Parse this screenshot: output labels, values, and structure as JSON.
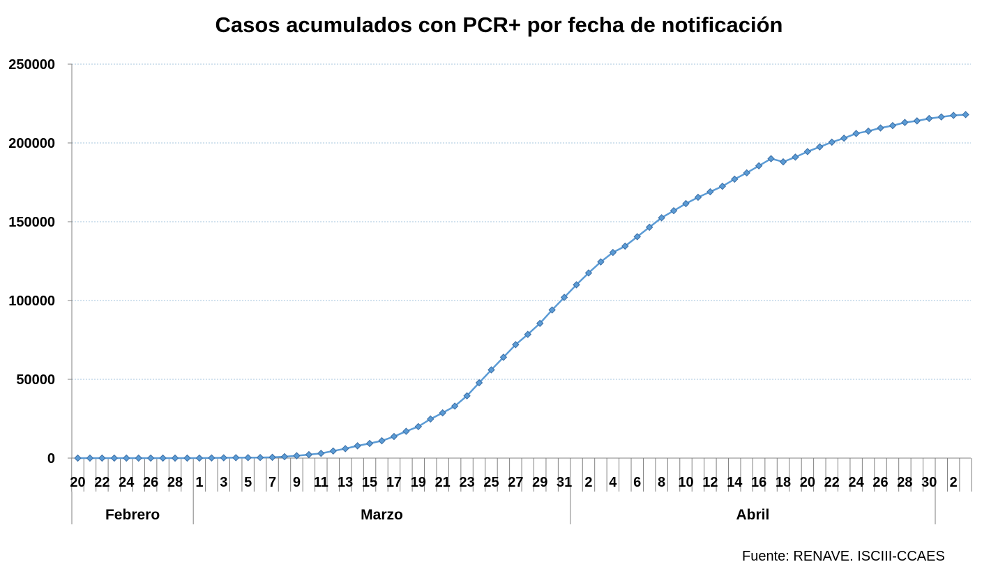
{
  "chart_data": {
    "type": "line",
    "title": "Casos acumulados con PCR+ por fecha de notificación",
    "xlabel": "",
    "ylabel": "",
    "ylim": [
      0,
      250000
    ],
    "yticks": [
      0,
      50000,
      100000,
      150000,
      200000,
      250000
    ],
    "grid": true,
    "legend": "none",
    "line_color": "#5b9bd5",
    "marker": "diamond",
    "x": [
      "2020-02-20",
      "2020-02-21",
      "2020-02-22",
      "2020-02-23",
      "2020-02-24",
      "2020-02-25",
      "2020-02-26",
      "2020-02-27",
      "2020-02-28",
      "2020-02-29",
      "2020-03-01",
      "2020-03-02",
      "2020-03-03",
      "2020-03-04",
      "2020-03-05",
      "2020-03-06",
      "2020-03-07",
      "2020-03-08",
      "2020-03-09",
      "2020-03-10",
      "2020-03-11",
      "2020-03-12",
      "2020-03-13",
      "2020-03-14",
      "2020-03-15",
      "2020-03-16",
      "2020-03-17",
      "2020-03-18",
      "2020-03-19",
      "2020-03-20",
      "2020-03-21",
      "2020-03-22",
      "2020-03-23",
      "2020-03-24",
      "2020-03-25",
      "2020-03-26",
      "2020-03-27",
      "2020-03-28",
      "2020-03-29",
      "2020-03-30",
      "2020-03-31",
      "2020-04-01",
      "2020-04-02",
      "2020-04-03",
      "2020-04-04",
      "2020-04-05",
      "2020-04-06",
      "2020-04-07",
      "2020-04-08",
      "2020-04-09",
      "2020-04-10",
      "2020-04-11",
      "2020-04-12",
      "2020-04-13",
      "2020-04-14",
      "2020-04-15",
      "2020-04-16",
      "2020-04-17",
      "2020-04-18",
      "2020-04-19",
      "2020-04-20",
      "2020-04-21",
      "2020-04-22",
      "2020-04-23",
      "2020-04-24",
      "2020-04-25",
      "2020-04-26",
      "2020-04-27",
      "2020-04-28",
      "2020-04-29",
      "2020-04-30",
      "2020-05-01",
      "2020-05-02",
      "2020-05-03"
    ],
    "x_tick_labels": [
      "20",
      "22",
      "24",
      "26",
      "28",
      "1",
      "3",
      "5",
      "7",
      "9",
      "11",
      "13",
      "15",
      "17",
      "19",
      "21",
      "23",
      "25",
      "27",
      "29",
      "31",
      "2",
      "4",
      "6",
      "8",
      "10",
      "12",
      "14",
      "16",
      "18",
      "20",
      "22",
      "24",
      "26",
      "28",
      "30",
      "2"
    ],
    "months": [
      "Febrero",
      "Marzo",
      "Abril"
    ],
    "series": [
      {
        "values": [
          0,
          0,
          0,
          0,
          0,
          0,
          0,
          0,
          0,
          0,
          0,
          100,
          200,
          250,
          300,
          350,
          500,
          900,
          1500,
          2200,
          3000,
          4500,
          6000,
          7800,
          9300,
          11000,
          13700,
          17000,
          20000,
          24800,
          28700,
          33000,
          39500,
          47800,
          56000,
          64000,
          72000,
          78500,
          85500,
          94000,
          102000,
          110000,
          117500,
          124500,
          130500,
          134500,
          140500,
          146500,
          152500,
          157000,
          161500,
          165500,
          169000,
          172500,
          177000,
          181000,
          185500,
          190000,
          188000,
          191000,
          194500,
          197500,
          200500,
          203000,
          206000,
          207500,
          209500,
          211000,
          213000,
          214000,
          215500,
          216500,
          217500,
          218000
        ]
      }
    ]
  },
  "source_note": "Fuente: RENAVE. ISCIII-CCAES"
}
